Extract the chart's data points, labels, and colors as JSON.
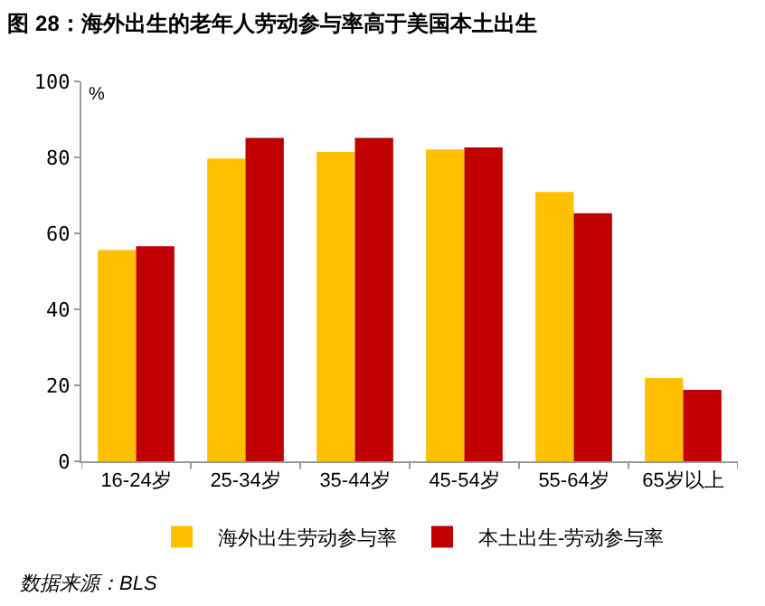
{
  "chart_data": {
    "type": "bar",
    "title": "图 28：海外出生的老年人劳动参与率高于美国本土出生",
    "ylabel": "%",
    "categories": [
      "16-24岁",
      "25-34岁",
      "35-44岁",
      "45-54岁",
      "55-64岁",
      "65岁以上"
    ],
    "series": [
      {
        "name": "海外出生劳动参与率",
        "color": "#ffc000",
        "values": [
          55.6,
          79.7,
          81.4,
          82.1,
          70.9,
          21.9
        ]
      },
      {
        "name": "本土出生-劳动参与率",
        "color": "#c00000",
        "values": [
          56.6,
          85.1,
          85.1,
          82.6,
          65.3,
          18.8
        ]
      }
    ],
    "ylim": [
      0,
      100
    ],
    "yticks": [
      0,
      20,
      40,
      60,
      80,
      100
    ],
    "legend": "bottom",
    "annotations": [
      "数据来源：BLS"
    ]
  }
}
